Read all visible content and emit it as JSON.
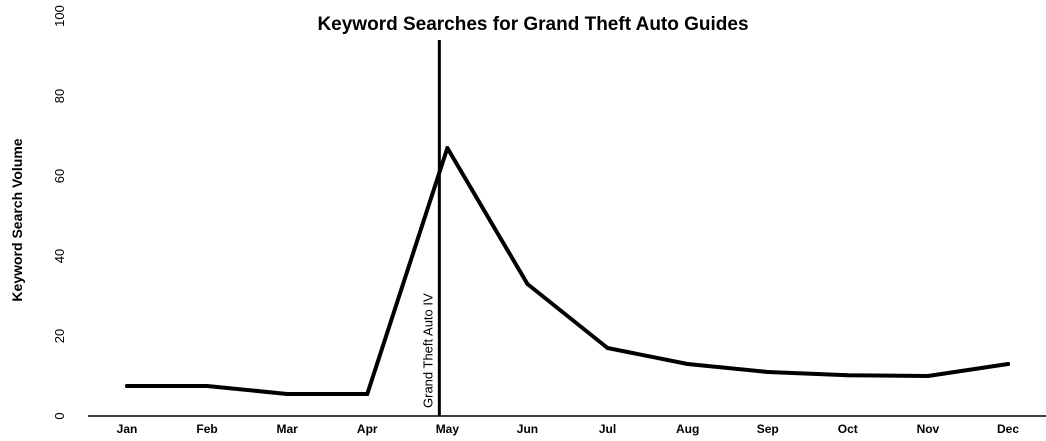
{
  "chart_data": {
    "type": "line",
    "title": "Keyword Searches for Grand Theft Auto Guides",
    "xlabel": "",
    "ylabel": "Keyword Search Volume",
    "categories": [
      "Jan",
      "Feb",
      "Mar",
      "Apr",
      "May",
      "Jun",
      "Jul",
      "Aug",
      "Sep",
      "Oct",
      "Nov",
      "Dec"
    ],
    "series": [
      {
        "values": [
          7.5,
          7.5,
          5.5,
          5.5,
          67,
          33,
          17,
          13,
          11,
          10.2,
          10,
          13
        ]
      }
    ],
    "ylim": [
      0,
      100
    ],
    "yticks": [
      "0",
      "20",
      "40",
      "60",
      "80",
      "100"
    ],
    "grid": false,
    "legend": "none",
    "annotation": {
      "text": "Grand Theft Auto IV",
      "x_category_position": 3.9
    },
    "colors": {
      "line": "#000000",
      "axis": "#000000"
    }
  }
}
